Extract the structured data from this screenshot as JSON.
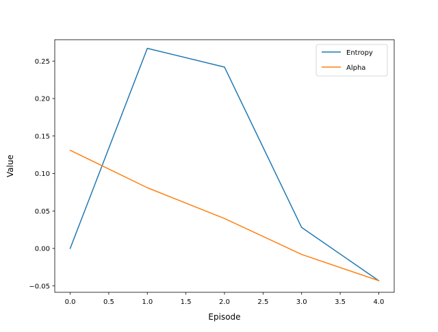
{
  "chart_data": {
    "type": "line",
    "title": "",
    "xlabel": "Episode",
    "ylabel": "Value",
    "xlim": [
      -0.2,
      4.2
    ],
    "ylim": [
      -0.0585,
      0.2785
    ],
    "x_ticks": [
      0.0,
      0.5,
      1.0,
      1.5,
      2.0,
      2.5,
      3.0,
      3.5,
      4.0
    ],
    "x_tick_labels": [
      "0.0",
      "0.5",
      "1.0",
      "1.5",
      "2.0",
      "2.5",
      "3.0",
      "3.5",
      "4.0"
    ],
    "y_ticks": [
      -0.05,
      0.0,
      0.05,
      0.1,
      0.15,
      0.2,
      0.25
    ],
    "y_tick_labels": [
      "−0.05",
      "0.00",
      "0.05",
      "0.10",
      "0.15",
      "0.20",
      "0.25"
    ],
    "grid": false,
    "legend_position": "top-right",
    "x": [
      0,
      1,
      2,
      3,
      4
    ],
    "series": [
      {
        "name": "Entropy",
        "color": "#1f77b4",
        "values": [
          0.0,
          0.267,
          0.242,
          0.028,
          -0.043
        ]
      },
      {
        "name": "Alpha",
        "color": "#ff7f0e",
        "values": [
          0.131,
          0.081,
          0.04,
          -0.008,
          -0.043
        ]
      }
    ]
  }
}
